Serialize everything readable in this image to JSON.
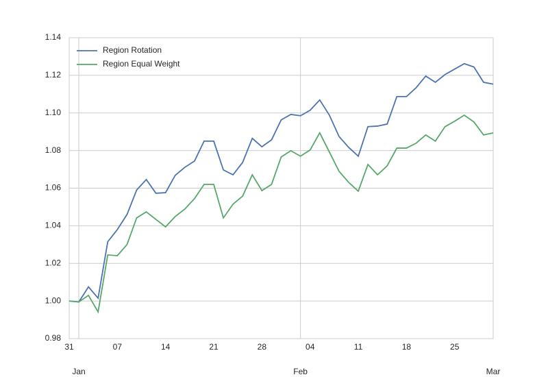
{
  "chart_data": {
    "type": "line",
    "x": [
      "12-31",
      "01-01",
      "01-02",
      "01-03",
      "01-06",
      "01-07",
      "01-08",
      "01-09",
      "01-10",
      "01-13",
      "01-14",
      "01-15",
      "01-16",
      "01-17",
      "01-20",
      "01-21",
      "01-22",
      "01-23",
      "01-24",
      "01-27",
      "01-28",
      "01-29",
      "01-30",
      "01-31",
      "02-03",
      "02-04",
      "02-05",
      "02-06",
      "02-07",
      "02-10",
      "02-11",
      "02-12",
      "02-13",
      "02-14",
      "02-17",
      "02-18",
      "02-19",
      "02-20",
      "02-21",
      "02-24",
      "02-25",
      "02-26",
      "02-27",
      "02-28",
      "03-03"
    ],
    "series": [
      {
        "name": "Region Rotation",
        "color": "#4c72b0",
        "values": [
          1.0,
          0.9995,
          1.0075,
          1.0015,
          1.0315,
          1.038,
          1.046,
          1.059,
          1.0646,
          1.0573,
          1.0576,
          1.0668,
          1.0711,
          1.0744,
          1.085,
          1.085,
          1.0697,
          1.0671,
          1.0737,
          1.0865,
          1.082,
          1.0857,
          1.0963,
          1.0992,
          1.0985,
          1.1014,
          1.1069,
          1.0988,
          1.0875,
          1.0817,
          1.077,
          1.0927,
          1.093,
          1.0941,
          1.1087,
          1.1087,
          1.1134,
          1.1196,
          1.1163,
          1.1204,
          1.1233,
          1.1262,
          1.1244,
          1.1163,
          1.1153
        ]
      },
      {
        "name": "Region Equal Weight",
        "color": "#55a868",
        "values": [
          1.0,
          0.9995,
          1.003,
          0.9942,
          1.0245,
          1.0241,
          1.03,
          1.0442,
          1.0474,
          1.0434,
          1.0394,
          1.0449,
          1.0489,
          1.0544,
          1.062,
          1.062,
          1.0442,
          1.0515,
          1.0558,
          1.0671,
          1.0587,
          1.062,
          1.0766,
          1.0799,
          1.077,
          1.0803,
          1.0894,
          1.0792,
          1.069,
          1.0631,
          1.0584,
          1.0726,
          1.0671,
          1.0719,
          1.0813,
          1.0813,
          1.0839,
          1.0883,
          1.085,
          1.0927,
          1.0956,
          1.0988,
          1.0952,
          1.0883,
          1.0894
        ]
      }
    ],
    "ylim": [
      0.98,
      1.14
    ],
    "yticks": [
      0.98,
      {
        "value": 1.0,
        "label": "1.00"
      },
      1.02,
      1.04,
      1.06,
      1.08,
      {
        "value": 1.1,
        "label": "1.10"
      },
      1.12,
      1.14
    ],
    "xticks": [
      {
        "value": "12-31",
        "label": "31"
      },
      {
        "value": "01-07",
        "label": "07"
      },
      {
        "value": "01-14",
        "label": "14"
      },
      {
        "value": "01-21",
        "label": "21"
      },
      {
        "value": "01-28",
        "label": "28"
      },
      {
        "value": "02-04",
        "label": "04"
      },
      {
        "value": "02-11",
        "label": "11"
      },
      {
        "value": "02-18",
        "label": "18"
      },
      {
        "value": "02-25",
        "label": "25"
      }
    ],
    "xticks_major": [
      {
        "value": "01-01",
        "label": "Jan"
      },
      {
        "value": "02-03",
        "label": "Feb"
      },
      {
        "value": "03-03",
        "label": "Mar"
      }
    ],
    "grid": true,
    "legend": "upper left"
  }
}
